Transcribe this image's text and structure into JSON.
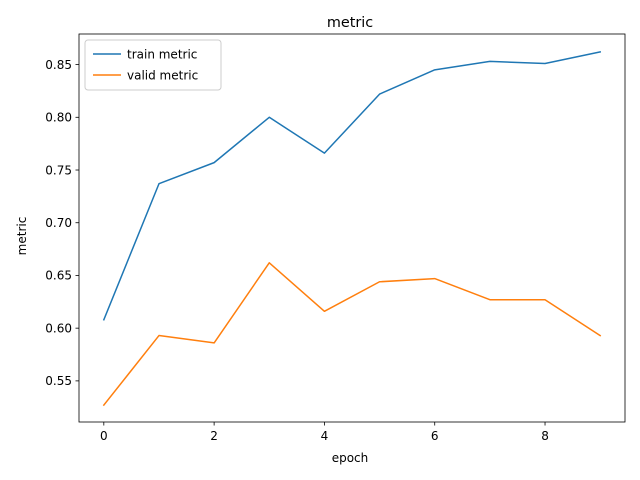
{
  "chart_data": {
    "type": "line",
    "title": "metric",
    "xlabel": "epoch",
    "ylabel": "metric",
    "x": [
      0,
      1,
      2,
      3,
      4,
      5,
      6,
      7,
      8,
      9
    ],
    "xlim": [
      -0.45,
      9.45
    ],
    "ylim": [
      0.511,
      0.879
    ],
    "xticks": [
      0,
      2,
      4,
      6,
      8
    ],
    "xtick_labels": [
      "0",
      "2",
      "4",
      "6",
      "8"
    ],
    "yticks": [
      0.55,
      0.6,
      0.65,
      0.7,
      0.75,
      0.8,
      0.85
    ],
    "ytick_labels": [
      "0.55",
      "0.60",
      "0.65",
      "0.70",
      "0.75",
      "0.80",
      "0.85"
    ],
    "grid": false,
    "legend_position": "top-left",
    "series": [
      {
        "name": "train metric",
        "color": "#1f77b4",
        "values": [
          0.608,
          0.737,
          0.757,
          0.8,
          0.766,
          0.822,
          0.845,
          0.853,
          0.851,
          0.862
        ]
      },
      {
        "name": "valid metric",
        "color": "#ff7f0e",
        "values": [
          0.527,
          0.593,
          0.586,
          0.662,
          0.616,
          0.644,
          0.647,
          0.627,
          0.627,
          0.593
        ]
      }
    ]
  }
}
